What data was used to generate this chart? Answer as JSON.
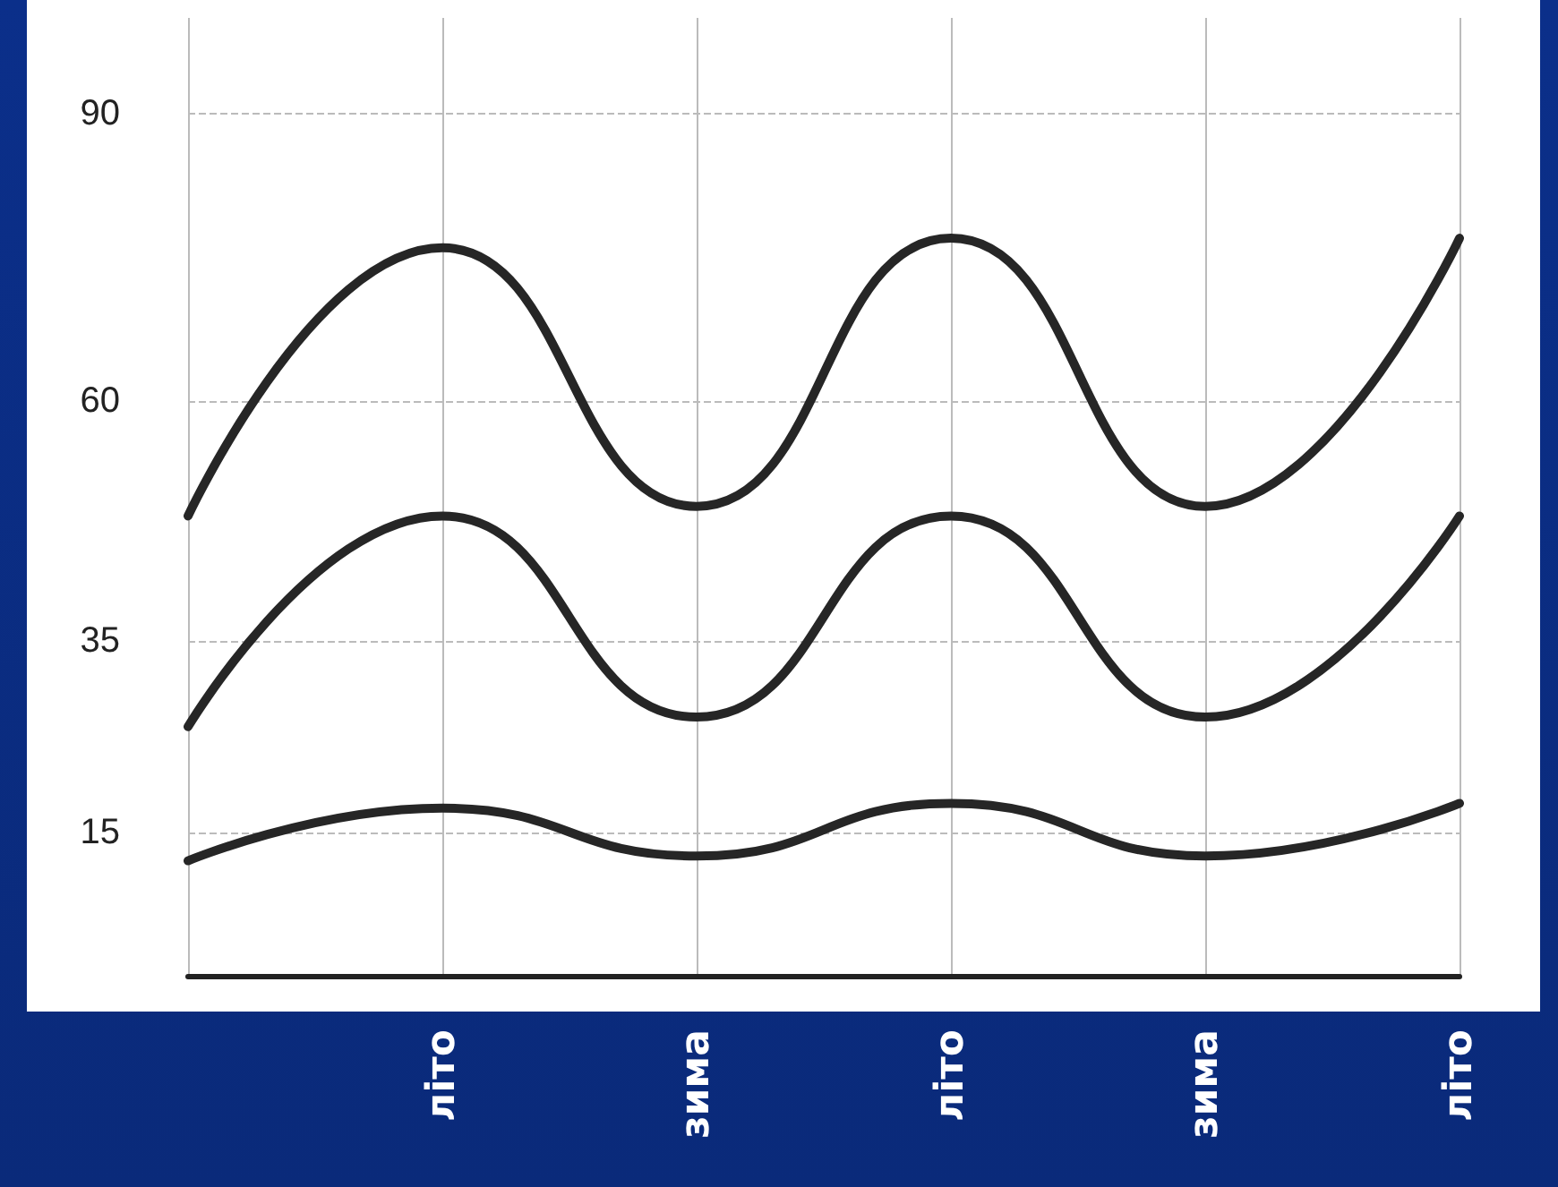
{
  "chart_data": {
    "type": "line",
    "categories": [
      null,
      "літо",
      "зима",
      "літо",
      "зима",
      "літо"
    ],
    "series": [
      {
        "color": "#262626",
        "values": [
          48,
          76,
          49,
          77,
          49,
          77
        ]
      },
      {
        "color": "#262626",
        "values": [
          26,
          48,
          27,
          48,
          27,
          48
        ]
      },
      {
        "color": "#262626",
        "values": [
          12,
          17.5,
          12.5,
          18,
          12.5,
          18
        ]
      }
    ],
    "ylim": [
      0,
      100
    ],
    "yticks": [
      15,
      35,
      60,
      90
    ],
    "grid": true,
    "marker": "none",
    "line_style": "solid"
  }
}
